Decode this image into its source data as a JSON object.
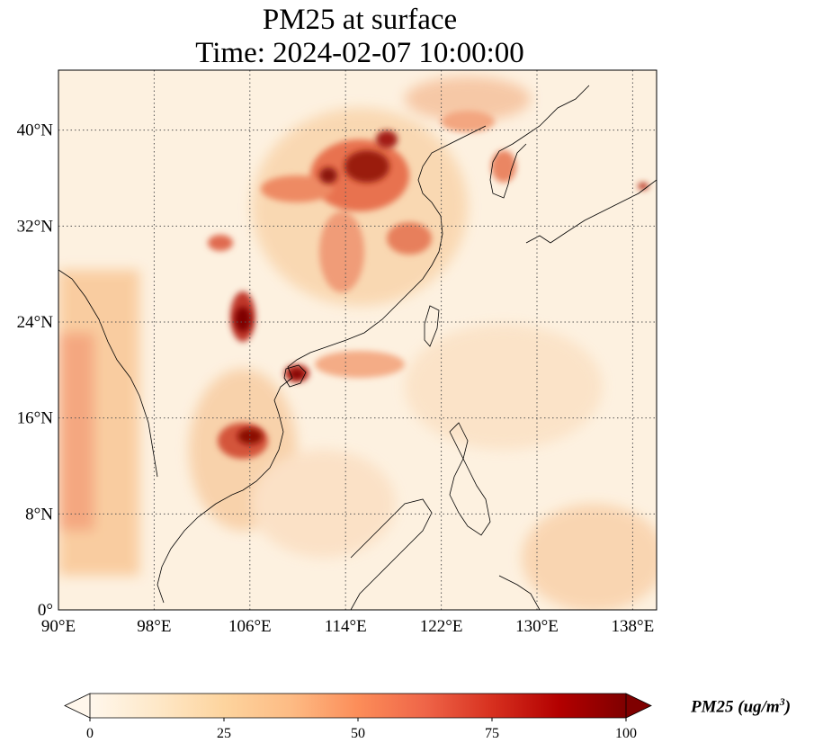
{
  "title": {
    "line1": "PM25 at surface",
    "line2": "Time: 2024-02-07 10:00:00"
  },
  "map": {
    "variable": "PM25",
    "projection": "PlateCarree",
    "lon_range": [
      90,
      140
    ],
    "lat_range": [
      0,
      45
    ],
    "lon_ticks": [
      "90°E",
      "98°E",
      "106°E",
      "114°E",
      "122°E",
      "130°E",
      "138°E"
    ],
    "lon_tick_values": [
      90,
      98,
      106,
      114,
      122,
      130,
      138
    ],
    "lat_ticks": [
      "0°",
      "8°N",
      "16°N",
      "24°N",
      "32°N",
      "40°N"
    ],
    "lat_tick_values": [
      0,
      8,
      16,
      24,
      32,
      40
    ],
    "gridlines": "dotted",
    "colormap": "OrRd",
    "background_color": "#fdf1e0"
  },
  "colorbar": {
    "label_text": "PM25 (ug/m",
    "label_exp": "3",
    "label_close": ")",
    "ticks": [
      "0",
      "25",
      "50",
      "75",
      "100"
    ],
    "tick_values": [
      0,
      25,
      50,
      75,
      100
    ],
    "range": [
      0,
      100
    ],
    "extend": "both",
    "colors": [
      "#fff7ec",
      "#fee8c8",
      "#fdd49e",
      "#fdbb84",
      "#fc8d59",
      "#ef6548",
      "#d7301f",
      "#b30000",
      "#7f0000"
    ]
  }
}
